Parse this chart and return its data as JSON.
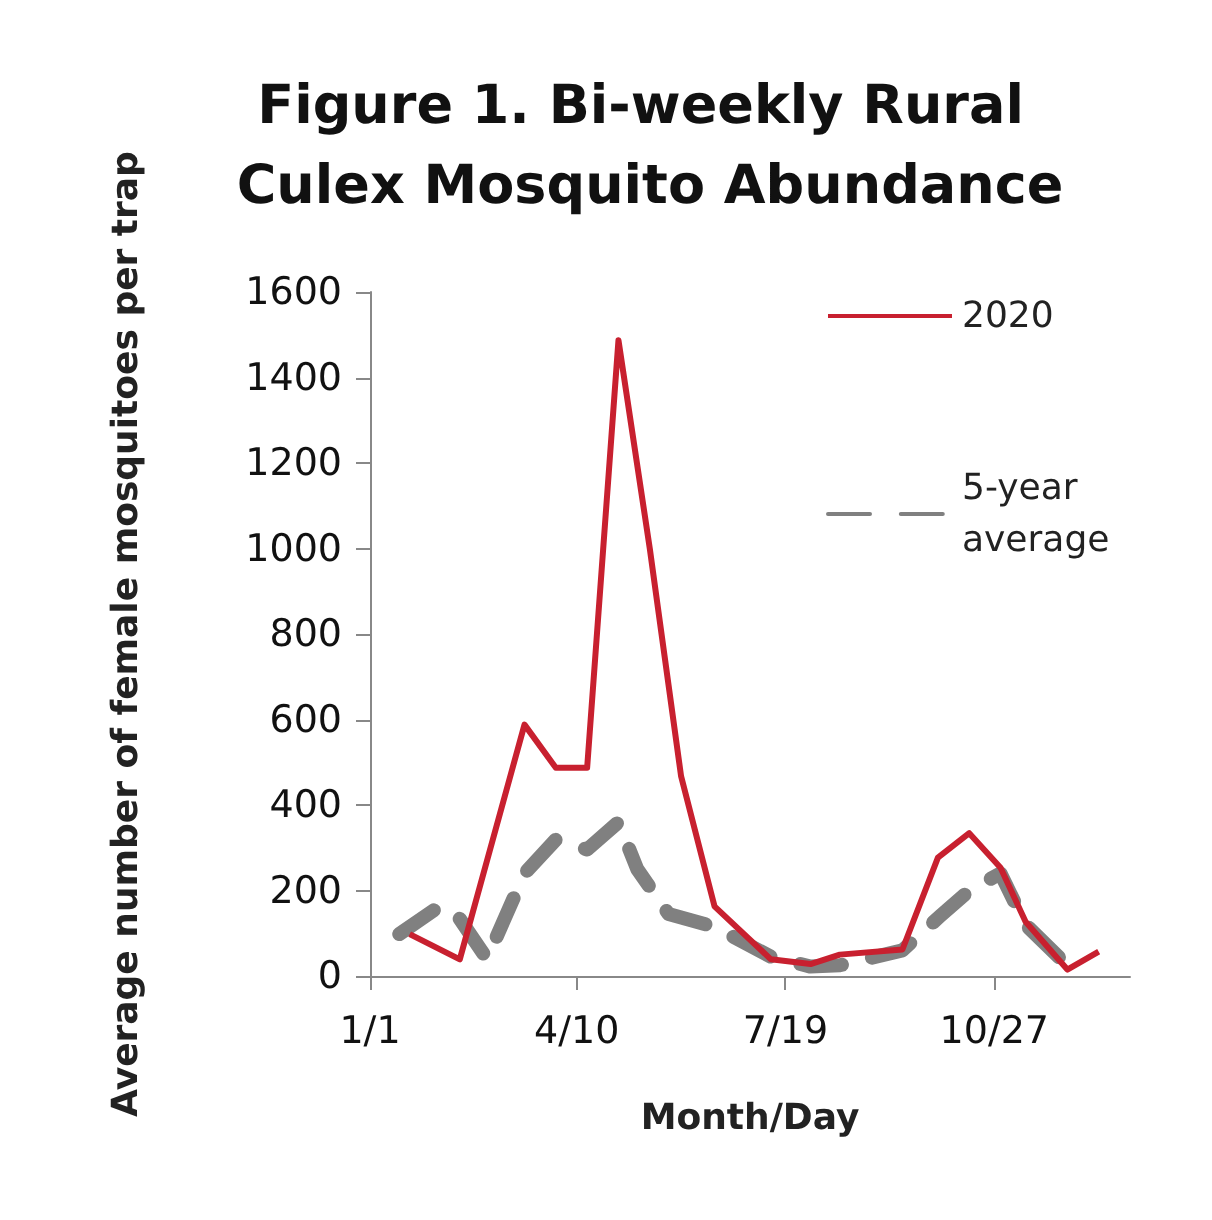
{
  "chart_data": {
    "type": "line",
    "title": "Figure 1. Bi-weekly Rural Culex Mosquito Abundance",
    "xlabel": "Month/Day",
    "ylabel": "Average number of female mosquitoes per trap",
    "xlim": [
      "--01-01",
      "--12-31"
    ],
    "xticks": [
      {
        "value": "--01-01",
        "label": "1/1"
      },
      {
        "value": "--04-10",
        "label": "4/10"
      },
      {
        "value": "--07-19",
        "label": "7/19"
      },
      {
        "value": "--10-27",
        "label": "10/27"
      }
    ],
    "ylim": [
      0,
      1600
    ],
    "yticks": [
      0,
      200,
      400,
      600,
      800,
      1000,
      1200,
      1400,
      1600
    ],
    "grid": false,
    "legend": "top right",
    "marker": "none",
    "series": [
      {
        "name": "2020",
        "color": "#c8202f",
        "line_style": "solid",
        "x": [
          "--01-20",
          "--02-13",
          "--03-16",
          "--03-31",
          "--04-15",
          "--04-30",
          "--05-15",
          "--05-30",
          "--06-15",
          "--07-12",
          "--07-31",
          "--08-14",
          "--09-13",
          "--09-30",
          "--10-15",
          "--10-30",
          "--11-11",
          "--12-01",
          "--12-16"
        ],
        "values": [
          98,
          39,
          588,
          487,
          487,
          1487,
          1000,
          467,
          163,
          39,
          28,
          50,
          62,
          277,
          334,
          253,
          127,
          15,
          57
        ]
      },
      {
        "name": "5-year average",
        "color": "#808080",
        "line_style": "dashed",
        "x": [
          "--01-15",
          "--02-01",
          "--02-10",
          "--02-26",
          "--03-16",
          "--03-31",
          "--04-15",
          "--04-30",
          "--05-09",
          "--05-24",
          "--06-15",
          "--07-12",
          "--07-31",
          "--08-14",
          "--09-13",
          "--10-01",
          "--10-15",
          "--10-30",
          "--11-11",
          "--12-01"
        ],
        "values": [
          98,
          155,
          155,
          40,
          240,
          319,
          296,
          360,
          250,
          145,
          115,
          45,
          22,
          25,
          60,
          140,
          200,
          240,
          120,
          25
        ]
      }
    ]
  }
}
